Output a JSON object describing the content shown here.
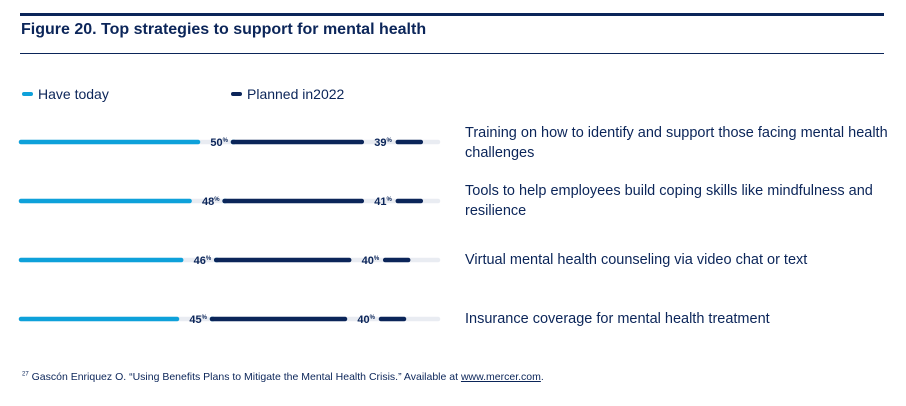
{
  "title": "Figure 20. Top strategies to support for mental health",
  "colors": {
    "have_today": "#0ea1da",
    "planned": "#0b2559",
    "track": "#e9ecf2",
    "text": "#0b2559"
  },
  "chart_data": {
    "type": "bar",
    "orientation": "horizontal",
    "ylim": [
      0,
      100
    ],
    "grid": false,
    "legend_position": "top-left",
    "categories": [
      "Training on how to identify and support those facing mental health challenges",
      "Tools to help employees build coping skills like mindfulness and resilience",
      "Virtual mental health counseling via video chat or text",
      "Insurance coverage for mental health treatment"
    ],
    "series": [
      {
        "name": "Have today",
        "values": [
          50,
          48,
          46,
          45
        ]
      },
      {
        "name": "Planned in2022",
        "values": [
          39,
          41,
          40,
          40
        ]
      }
    ],
    "value_suffix": "%"
  },
  "footnote": {
    "marker": "27",
    "text": " Gascón Enriquez O. “Using Benefits Plans to Mitigate the Mental Health Crisis.” Available at ",
    "link": "www.mercer.com",
    "after": "."
  }
}
